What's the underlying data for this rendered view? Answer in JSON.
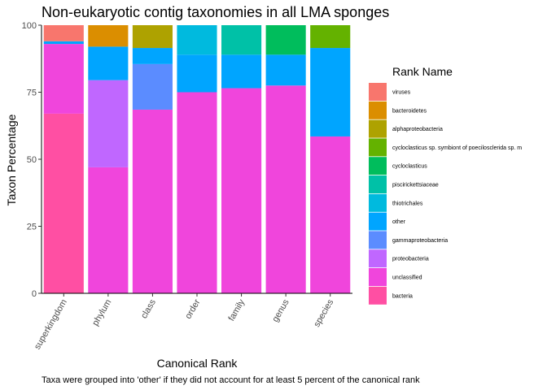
{
  "chart_data": {
    "type": "bar",
    "stacked": true,
    "title": "Non-eukaryotic contig taxonomies in all LMA sponges",
    "xlabel": "Canonical Rank",
    "ylabel": "Taxon Percentage",
    "caption": "Taxa were grouped into 'other' if they did not account for at least 5 percent of the canonical rank",
    "ylim": [
      0,
      100
    ],
    "yticks": [
      0,
      25,
      50,
      75,
      100
    ],
    "grid": false,
    "legend_position": "right",
    "legend_title": "Rank Name",
    "categories": [
      "superkingdom",
      "phylum",
      "class",
      "order",
      "family",
      "genus",
      "species"
    ],
    "series": [
      {
        "name": "viruses",
        "color": "#F8766D",
        "values": [
          6,
          0,
          0,
          0,
          0,
          0,
          0
        ]
      },
      {
        "name": "bacteroidetes",
        "color": "#DB8E00",
        "values": [
          0,
          8,
          0,
          0,
          0,
          0,
          0
        ]
      },
      {
        "name": "alphaproteobacteria",
        "color": "#AEA200",
        "values": [
          0,
          0,
          8.5,
          0,
          0,
          0,
          0
        ]
      },
      {
        "name": "cycloclasticus sp. symbiont of poecilosclerida sp. m",
        "color": "#64B200",
        "values": [
          0,
          0,
          0,
          0,
          0,
          0,
          8.5
        ]
      },
      {
        "name": "cycloclasticus",
        "color": "#00BD5C",
        "values": [
          0,
          0,
          0,
          0,
          0,
          11,
          0
        ]
      },
      {
        "name": "piscirickettsiaceae",
        "color": "#00C1A7",
        "values": [
          0,
          0,
          0,
          0,
          11,
          0,
          0
        ]
      },
      {
        "name": "thiotrichales",
        "color": "#00BADE",
        "values": [
          0,
          0,
          0,
          11,
          0,
          0,
          0
        ]
      },
      {
        "name": "other",
        "color": "#00A6FF",
        "values": [
          1,
          12.5,
          6,
          14,
          12.5,
          11.5,
          33
        ]
      },
      {
        "name": "gammaproteobacteria",
        "color": "#B385FF",
        "values": [
          0,
          0,
          17,
          0,
          0,
          0,
          0
        ]
      },
      {
        "name": "proteobacteria",
        "color": "#EF67EB",
        "values": [
          0,
          32.5,
          0,
          0,
          0,
          0,
          0
        ]
      },
      {
        "name": "unclassified",
        "color": "#FF63B6",
        "values": [
          26,
          47,
          68.5,
          75,
          76.5,
          77.5,
          58.5
        ]
      },
      {
        "name": "bacteria",
        "color": "#FF61C3",
        "values": [
          67,
          0,
          0,
          0,
          0,
          0,
          0
        ]
      }
    ],
    "render_colors": {
      "viruses": "#F8766D",
      "bacteroidetes": "#DB8E00",
      "alphaproteobacteria": "#AEA200",
      "cycloclasticus sp. symbiont of poecilosclerida sp. m": "#64B200",
      "cycloclasticus": "#00BD5C",
      "piscirickettsiaceae": "#00C1A7",
      "thiotrichales": "#00BADE",
      "other": "#00A5FF",
      "gammaproteobacteria": "#5B8CFF",
      "proteobacteria": "#C067FF",
      "unclassified": "#F045DC",
      "bacteria": "#FF4FA3"
    }
  }
}
